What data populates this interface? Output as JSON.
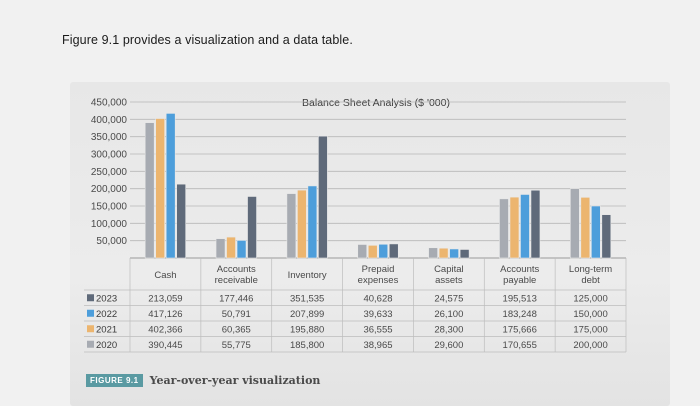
{
  "intro_text": "Figure 9.1 provides a visualization and a data table.",
  "caption": {
    "tag": "FIGURE 9.1",
    "text": "Year-over-year visualization"
  },
  "chart_data": {
    "type": "bar",
    "title": "Balance Sheet Analysis ($ '000)",
    "xlabel": "",
    "ylabel": "",
    "ylim": [
      0,
      450000
    ],
    "yticks": [
      50000,
      100000,
      150000,
      200000,
      250000,
      300000,
      350000,
      400000,
      450000
    ],
    "ytick_labels": [
      "50,000",
      "100,000",
      "150,000",
      "200,000",
      "250,000",
      "300,000",
      "350,000",
      "400,000",
      "450,000"
    ],
    "grid": true,
    "categories": [
      [
        "Cash"
      ],
      [
        "Accounts",
        "receivable"
      ],
      [
        "Inventory"
      ],
      [
        "Prepaid",
        "expenses"
      ],
      [
        "Capital",
        "assets"
      ],
      [
        "Accounts",
        "payable"
      ],
      [
        "Long-term",
        "debt"
      ]
    ],
    "series": [
      {
        "name": "2020",
        "color": "#a7abb2",
        "values": [
          390445,
          55775,
          185800,
          38965,
          29600,
          170655,
          200000
        ],
        "labels": [
          "390,445",
          "55,775",
          "185,800",
          "38,965",
          "29,600",
          "170,655",
          "200,000"
        ]
      },
      {
        "name": "2021",
        "color": "#ecb56f",
        "values": [
          402366,
          60365,
          195880,
          36555,
          28300,
          175666,
          175000
        ],
        "labels": [
          "402,366",
          "60,365",
          "195,880",
          "36,555",
          "28,300",
          "175,666",
          "175,000"
        ]
      },
      {
        "name": "2022",
        "color": "#4d9edb",
        "values": [
          417126,
          50791,
          207899,
          39633,
          26100,
          183248,
          150000
        ],
        "labels": [
          "417,126",
          "50,791",
          "207,899",
          "39,633",
          "26,100",
          "183,248",
          "150,000"
        ]
      },
      {
        "name": "2023",
        "color": "#5f6a7a",
        "values": [
          213059,
          177446,
          351535,
          40628,
          24575,
          195513,
          125000
        ],
        "labels": [
          "213,059",
          "177,446",
          "351,535",
          "40,628",
          "24,575",
          "195,513",
          "125,000"
        ]
      }
    ],
    "table_row_order": [
      "2023",
      "2022",
      "2021",
      "2020"
    ]
  }
}
